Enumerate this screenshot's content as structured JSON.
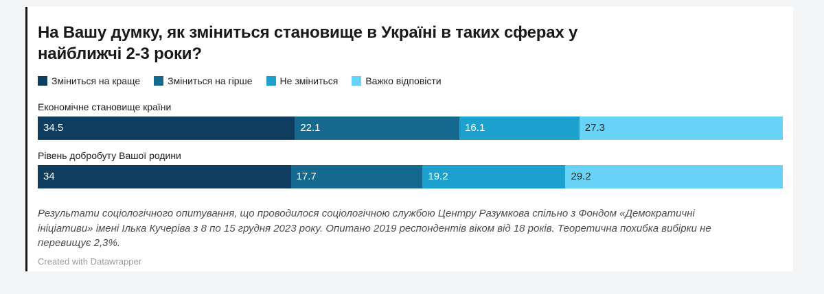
{
  "page": {
    "background": "#f4f5f7"
  },
  "card": {
    "background": "#ffffff",
    "left_border_color": "#151515"
  },
  "chart": {
    "title": "На Вашу думку, як зміниться становище в Україні в таких сферах у\nнайближчі 2-3 роки?",
    "notes": "Результати соціологічного опитування, що проводилося соціологічною службою Центру Разумкова спільно з Фондом «Демократичні\nініціативи» імені Ілька Кучеріва з 8 по 15 грудня 2023 року. Опитано 2019 респондентів віком від 18 років. Теоретична похибка вибірки не\nперевищує 2,3%.",
    "attribution": "Created with Datawrapper"
  },
  "chart_data": {
    "type": "bar",
    "stacked": true,
    "orientation": "horizontal",
    "unit": "percent",
    "xlim": [
      0,
      100
    ],
    "grid": false,
    "legend_position": "top",
    "categories": [
      "Економічне становище країни",
      "Рівень добробуту Вашої родини"
    ],
    "series": [
      {
        "name": "Зміниться на краще",
        "color": "#0e3d60",
        "label_color": "#ffffff",
        "values": [
          34.5,
          34
        ],
        "labels": [
          "34.5",
          "34"
        ]
      },
      {
        "name": "Зміниться на гірше",
        "color": "#15688e",
        "label_color": "#ffffff",
        "values": [
          22.1,
          17.7
        ],
        "labels": [
          "22.1",
          "17.7"
        ]
      },
      {
        "name": "Не зміниться",
        "color": "#1da2cf",
        "label_color": "#ffffff",
        "values": [
          16.1,
          19.2
        ],
        "labels": [
          "16.1",
          "19.2"
        ]
      },
      {
        "name": "Важко відповісти",
        "color": "#68d3f6",
        "label_color": "#2e2e2e",
        "values": [
          27.3,
          29.2
        ],
        "labels": [
          "27.3",
          "29.2"
        ]
      }
    ]
  }
}
